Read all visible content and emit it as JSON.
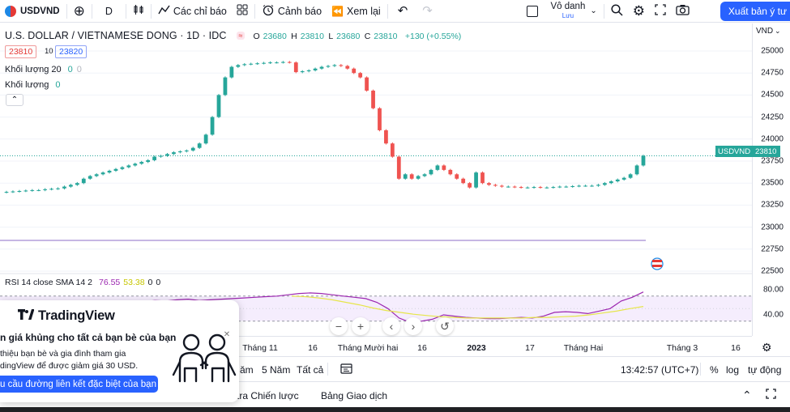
{
  "toolbar": {
    "symbol": "USDVND",
    "add_symbol_icon": "plus-circle-icon",
    "interval": "D",
    "indicators_label": "Các chỉ báo",
    "alerts_label": "Cảnh báo",
    "replay_label": "Xem lại",
    "user_name": "Vô danh",
    "user_sub": "Lưu",
    "publish_label": "Xuất bản ý tư"
  },
  "legend": {
    "title": "U.S. DOLLAR / VIETNAMESE DONG · 1D · IDC",
    "badge": "≈",
    "o_key": "O",
    "o_val": "23680",
    "h_key": "H",
    "h_val": "23810",
    "l_key": "L",
    "l_val": "23680",
    "c_key": "C",
    "c_val": "23810",
    "change": "+130 (+0.55%)",
    "sell_price": "23810",
    "lot": "10",
    "buy_price": "23820",
    "vol20_label": "Khối lượng 20",
    "vol20_v1": "0",
    "vol20_v2": "0",
    "vol_label": "Khối lượng",
    "vol_v1": "0",
    "collapse_icon": "chevron-up-icon"
  },
  "price_axis": {
    "currency": "VND",
    "labels": [
      "25000",
      "24750",
      "24500",
      "24250",
      "24000",
      "23750",
      "23500",
      "23250",
      "23000",
      "22750",
      "22500"
    ],
    "last_symbol": "USDVND",
    "last_price": "23810",
    "rsi_labels": [
      "80.00",
      "40.00"
    ]
  },
  "rsi": {
    "label": "RSI 14 close SMA 14 2",
    "rsi_value": "76.55",
    "sma_value": "53.38",
    "v3": "0",
    "v4": "0"
  },
  "time_axis": {
    "labels": [
      "Tháng 11",
      "16",
      "Tháng Mười hai",
      "16",
      "2023",
      "17",
      "Tháng Hai",
      "Tháng 3",
      "16"
    ]
  },
  "range_bar": {
    "r1": "5 Năm",
    "r2": "Tất cả",
    "partial_prev": "ăm",
    "time": "13:42:57 (UTC+7)",
    "percent": "%",
    "log": "log",
    "auto": "tự động"
  },
  "tabs_bar": {
    "t1": "n tra Chiến lược",
    "t2": "Bảng Giao dịch"
  },
  "promo": {
    "brand": "TradingView",
    "title": "n giá khủng cho tất cả bạn bè của bạn",
    "desc1": "thiệu bạn bè và gia đình tham gia",
    "desc2": "dingView để được giảm giá 30 USD.",
    "button": "u cầu đường liên kết đặc biệt của bạn"
  },
  "colors": {
    "up": "#26a69a",
    "down": "#ef5350",
    "rsi": "#9c27b0",
    "sma": "#e6e64a",
    "accent": "#2962ff"
  },
  "chart_data": {
    "type": "candlestick",
    "symbol": "USDVND",
    "ylim": [
      22400,
      25150
    ],
    "x_labels": [
      "Tháng 11",
      "16",
      "Tháng Mười hai",
      "16",
      "2023",
      "17",
      "Tháng Hai",
      "Tháng 3",
      "16"
    ],
    "close": [
      23400,
      23405,
      23410,
      23415,
      23420,
      23420,
      23430,
      23435,
      23440,
      23460,
      23480,
      23500,
      23550,
      23580,
      23600,
      23620,
      23640,
      23660,
      23680,
      23700,
      23720,
      23740,
      23760,
      23800,
      23810,
      23830,
      23850,
      23860,
      23870,
      23900,
      23950,
      24050,
      24250,
      24500,
      24700,
      24820,
      24840,
      24850,
      24855,
      24860,
      24865,
      24870,
      24870,
      24875,
      24870,
      24760,
      24770,
      24780,
      24800,
      24820,
      24830,
      24840,
      24830,
      24800,
      24750,
      24700,
      24550,
      24350,
      24100,
      23950,
      23800,
      23550,
      23600,
      23550,
      23580,
      23600,
      23650,
      23700,
      23650,
      23600,
      23550,
      23500,
      23450,
      23620,
      23500,
      23480,
      23470,
      23460,
      23460,
      23455,
      23450,
      23450,
      23455,
      23450,
      23450,
      23455,
      23460,
      23460,
      23465,
      23470,
      23470,
      23470,
      23480,
      23500,
      23520,
      23540,
      23560,
      23600,
      23700,
      23810
    ],
    "rsi": [
      60,
      62,
      61,
      63,
      62,
      64,
      65,
      63,
      64,
      65,
      66,
      67,
      68,
      69,
      70,
      72,
      74,
      75,
      74,
      72,
      70,
      68,
      66,
      60,
      50,
      35,
      28,
      30,
      33,
      40,
      38,
      36,
      35,
      34,
      34,
      35,
      36,
      35,
      38,
      44,
      45,
      44,
      42,
      46,
      50,
      62,
      68,
      76.55
    ],
    "sma": [
      70,
      69,
      67,
      64,
      60,
      56,
      51,
      47,
      44,
      41,
      39,
      37,
      36,
      35,
      35,
      35,
      35,
      35,
      36,
      36,
      37,
      38,
      40,
      43,
      46,
      50,
      53.38
    ]
  }
}
